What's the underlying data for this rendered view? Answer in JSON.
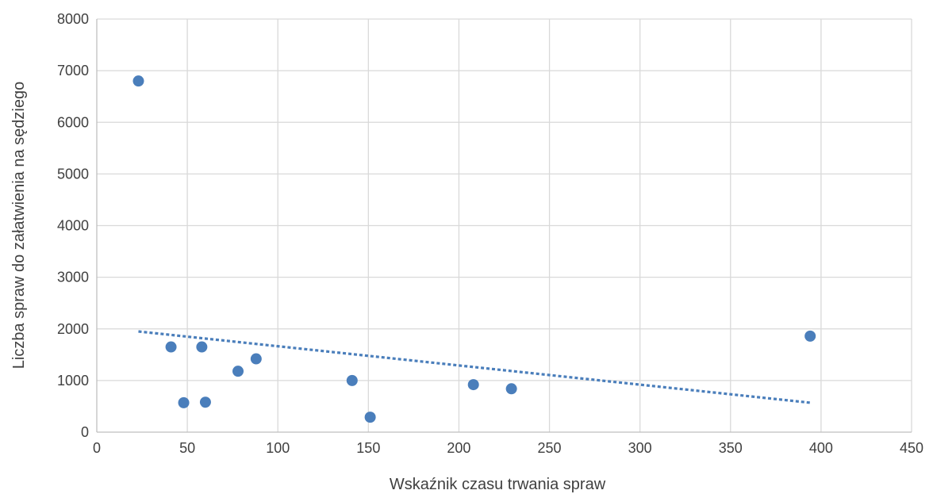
{
  "chart_data": {
    "type": "scatter",
    "title": "",
    "xlabel": "Wskaźnik czasu trwania spraw",
    "ylabel": "Liczba spraw do załatwienia  na sędziego",
    "xlim": [
      0,
      450
    ],
    "ylim": [
      0,
      8000
    ],
    "x_ticks": [
      0,
      50,
      100,
      150,
      200,
      250,
      300,
      350,
      400,
      450
    ],
    "y_ticks": [
      0,
      1000,
      2000,
      3000,
      4000,
      5000,
      6000,
      7000,
      8000
    ],
    "grid": true,
    "legend": "none",
    "marker_color": "#4a7ebb",
    "trendline": {
      "type": "linear",
      "style": "dotted",
      "color": "#4a7ebb",
      "x_start": 23,
      "y_start": 1950,
      "x_end": 394,
      "y_end": 570
    },
    "points": [
      {
        "x": 23,
        "y": 6800
      },
      {
        "x": 41,
        "y": 1650
      },
      {
        "x": 48,
        "y": 570
      },
      {
        "x": 58,
        "y": 1650
      },
      {
        "x": 60,
        "y": 580
      },
      {
        "x": 78,
        "y": 1180
      },
      {
        "x": 88,
        "y": 1420
      },
      {
        "x": 141,
        "y": 1000
      },
      {
        "x": 151,
        "y": 290
      },
      {
        "x": 208,
        "y": 920
      },
      {
        "x": 229,
        "y": 840
      },
      {
        "x": 394,
        "y": 1860
      }
    ]
  }
}
